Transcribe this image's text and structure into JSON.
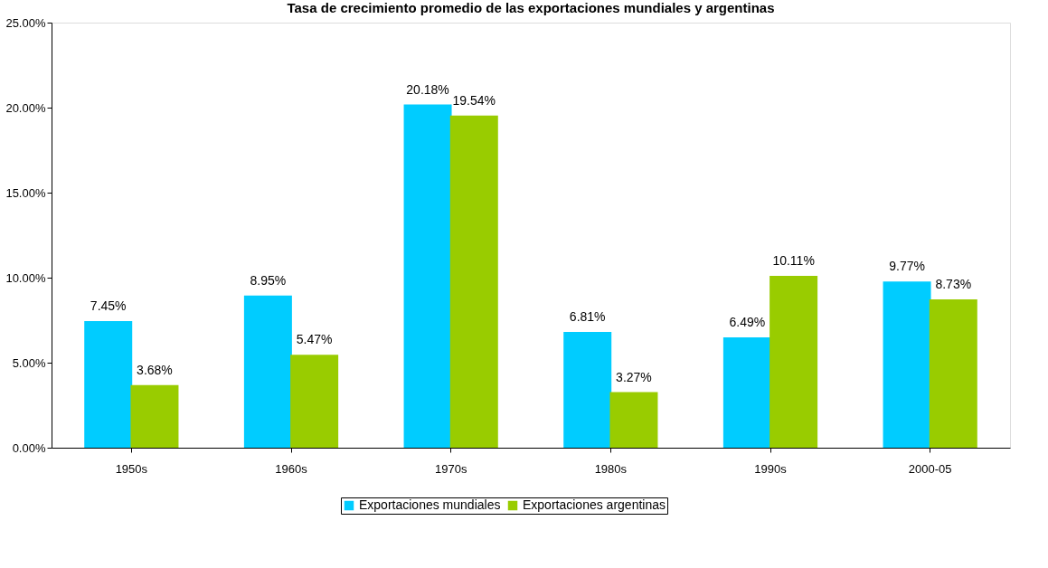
{
  "chart_data": {
    "type": "bar",
    "title": "Tasa de crecimiento promedio de las exportaciones mundiales y argentinas",
    "categories": [
      "1950s",
      "1960s",
      "1970s",
      "1980s",
      "1990s",
      "2000-05"
    ],
    "series": [
      {
        "name": "Exportaciones mundiales",
        "color": "#00ccff",
        "values": [
          7.45,
          8.95,
          20.18,
          6.81,
          6.49,
          9.77
        ],
        "value_labels": [
          "7.45%",
          "8.95%",
          "20.18%",
          "6.81%",
          "6.49%",
          "9.77%"
        ]
      },
      {
        "name": "Exportaciones argentinas",
        "color": "#99cc00",
        "values": [
          3.68,
          5.47,
          19.54,
          3.27,
          10.11,
          8.73
        ],
        "value_labels": [
          "3.68%",
          "5.47%",
          "19.54%",
          "3.27%",
          "10.11%",
          "8.73%"
        ]
      }
    ],
    "ylim": [
      0,
      25
    ],
    "yticks": [
      {
        "value": 0,
        "label": "0.00%"
      },
      {
        "value": 5,
        "label": "5.00%"
      },
      {
        "value": 10,
        "label": "10.00%"
      },
      {
        "value": 15,
        "label": "15.00%"
      },
      {
        "value": 20,
        "label": "20.00%"
      },
      {
        "value": 25,
        "label": "25.00%"
      }
    ],
    "grid": false,
    "legend": "bottom"
  }
}
